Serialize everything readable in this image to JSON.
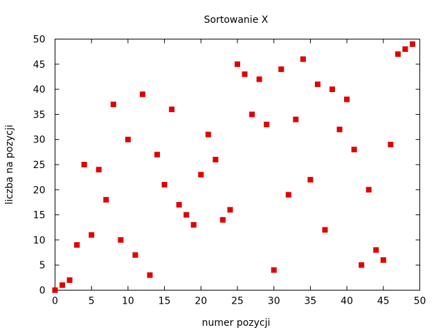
{
  "chart_data": {
    "type": "scatter",
    "title": "Sortowanie X",
    "xlabel": "numer pozycji",
    "ylabel": "liczba na pozycji",
    "xlim": [
      0,
      50
    ],
    "ylim": [
      0,
      50
    ],
    "xticks": [
      0,
      5,
      10,
      15,
      20,
      25,
      30,
      35,
      40,
      45,
      50
    ],
    "yticks": [
      0,
      5,
      10,
      15,
      20,
      25,
      30,
      35,
      40,
      45,
      50
    ],
    "grid": false,
    "marker_color": "#e00000",
    "marker": "square",
    "points": [
      {
        "x": 0,
        "y": 0
      },
      {
        "x": 1,
        "y": 1
      },
      {
        "x": 2,
        "y": 2
      },
      {
        "x": 3,
        "y": 9
      },
      {
        "x": 4,
        "y": 25
      },
      {
        "x": 5,
        "y": 11
      },
      {
        "x": 6,
        "y": 24
      },
      {
        "x": 7,
        "y": 18
      },
      {
        "x": 8,
        "y": 37
      },
      {
        "x": 9,
        "y": 10
      },
      {
        "x": 10,
        "y": 30
      },
      {
        "x": 11,
        "y": 7
      },
      {
        "x": 12,
        "y": 39
      },
      {
        "x": 13,
        "y": 3
      },
      {
        "x": 14,
        "y": 27
      },
      {
        "x": 15,
        "y": 21
      },
      {
        "x": 16,
        "y": 36
      },
      {
        "x": 17,
        "y": 17
      },
      {
        "x": 18,
        "y": 15
      },
      {
        "x": 19,
        "y": 13
      },
      {
        "x": 20,
        "y": 23
      },
      {
        "x": 21,
        "y": 31
      },
      {
        "x": 22,
        "y": 26
      },
      {
        "x": 23,
        "y": 14
      },
      {
        "x": 24,
        "y": 16
      },
      {
        "x": 25,
        "y": 45
      },
      {
        "x": 26,
        "y": 43
      },
      {
        "x": 27,
        "y": 35
      },
      {
        "x": 28,
        "y": 42
      },
      {
        "x": 29,
        "y": 33
      },
      {
        "x": 30,
        "y": 4
      },
      {
        "x": 31,
        "y": 44
      },
      {
        "x": 32,
        "y": 19
      },
      {
        "x": 33,
        "y": 34
      },
      {
        "x": 34,
        "y": 46
      },
      {
        "x": 35,
        "y": 22
      },
      {
        "x": 36,
        "y": 41
      },
      {
        "x": 37,
        "y": 12
      },
      {
        "x": 38,
        "y": 40
      },
      {
        "x": 39,
        "y": 32
      },
      {
        "x": 40,
        "y": 38
      },
      {
        "x": 41,
        "y": 28
      },
      {
        "x": 42,
        "y": 5
      },
      {
        "x": 43,
        "y": 20
      },
      {
        "x": 44,
        "y": 8
      },
      {
        "x": 45,
        "y": 6
      },
      {
        "x": 46,
        "y": 29
      },
      {
        "x": 47,
        "y": 47
      },
      {
        "x": 48,
        "y": 48
      },
      {
        "x": 49,
        "y": 49
      }
    ]
  }
}
